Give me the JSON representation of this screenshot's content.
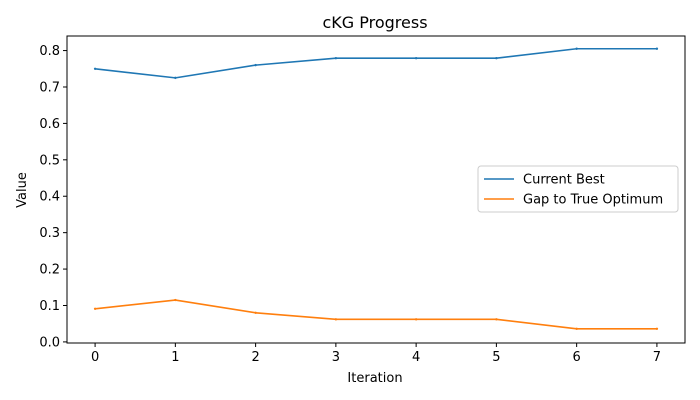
{
  "chart_data": {
    "type": "line",
    "title": "cKG Progress",
    "xlabel": "Iteration",
    "ylabel": "Value",
    "x": [
      0,
      1,
      2,
      3,
      4,
      5,
      6,
      7
    ],
    "xlim": [
      -0.35,
      7.35
    ],
    "ylim": [
      -0.003,
      0.84
    ],
    "xticks": [
      0,
      1,
      2,
      3,
      4,
      5,
      6,
      7
    ],
    "yticks": [
      "0.0",
      "0.1",
      "0.2",
      "0.3",
      "0.4",
      "0.5",
      "0.6",
      "0.7",
      "0.8"
    ],
    "grid": false,
    "legend_position": "center-right",
    "series": [
      {
        "name": "Current Best",
        "color": "#1f77b4",
        "values": [
          0.75,
          0.725,
          0.76,
          0.779,
          0.779,
          0.779,
          0.805,
          0.805
        ]
      },
      {
        "name": "Gap to True Optimum",
        "color": "#ff7f0e",
        "values": [
          0.091,
          0.115,
          0.08,
          0.062,
          0.062,
          0.062,
          0.036,
          0.036
        ]
      }
    ]
  }
}
